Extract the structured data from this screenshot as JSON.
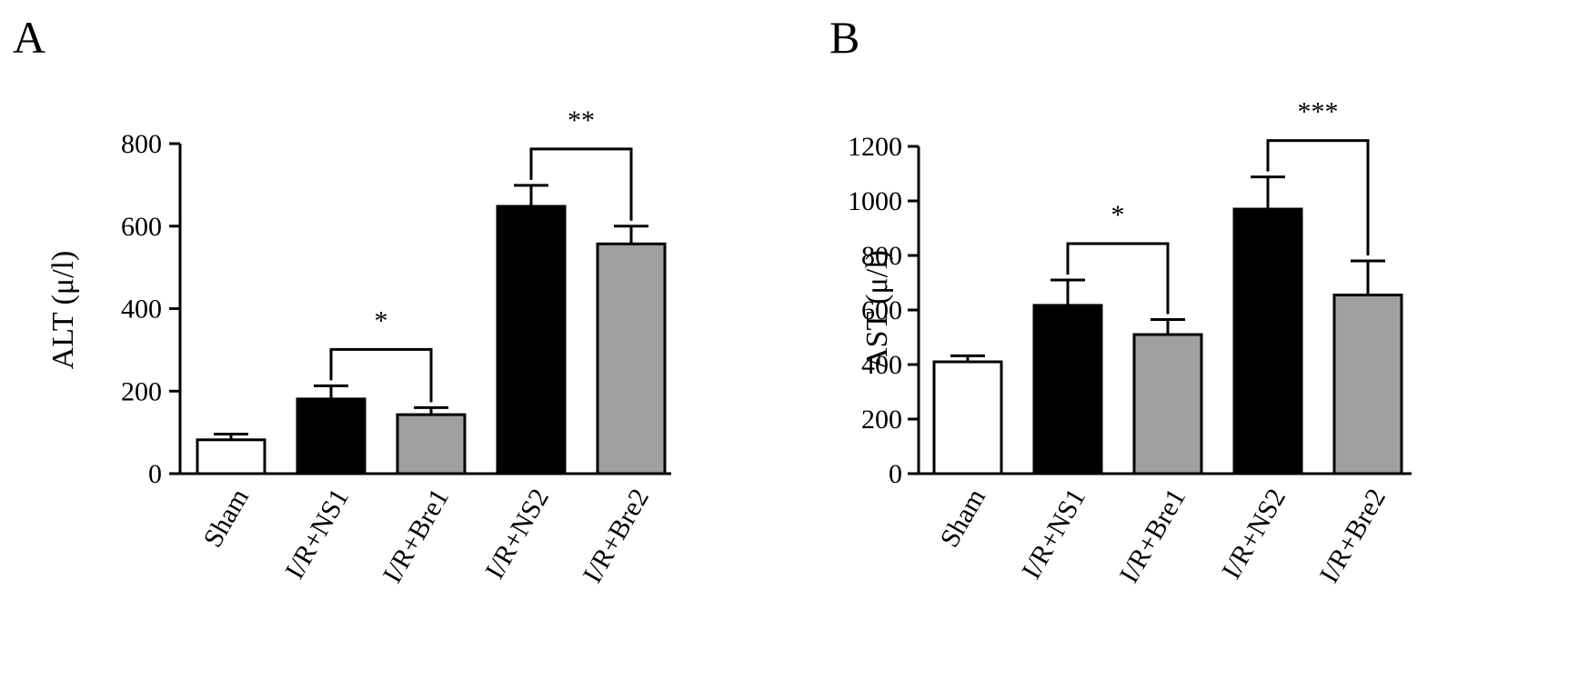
{
  "chart_data": [
    {
      "type": "bar",
      "panel_label": "A",
      "ylabel": "ALT (μ/l)",
      "ylim": [
        0,
        800
      ],
      "yticks": [
        0,
        200,
        400,
        600,
        800
      ],
      "categories": [
        "Sham",
        "I/R+NS1",
        "I/R+Bre1",
        "I/R+NS2",
        "I/R+Bre2"
      ],
      "values": [
        82,
        181,
        143,
        648,
        557
      ],
      "errors": [
        14,
        32,
        17,
        51,
        43
      ],
      "fills": [
        "#ffffff",
        "#000000",
        "#a0a0a0",
        "#000000",
        "#a0a0a0"
      ],
      "significance": [
        {
          "from": 1,
          "to": 2,
          "label": "*"
        },
        {
          "from": 3,
          "to": 4,
          "label": "**"
        }
      ]
    },
    {
      "type": "bar",
      "panel_label": "B",
      "ylabel": "AST (μ/l)",
      "ylim": [
        0,
        1200
      ],
      "yticks": [
        0,
        200,
        400,
        600,
        800,
        1000,
        1200
      ],
      "categories": [
        "Sham",
        "I/R+NS1",
        "I/R+Bre1",
        "I/R+NS2",
        "I/R+Bre2"
      ],
      "values": [
        410,
        617,
        510,
        970,
        655
      ],
      "errors": [
        22,
        93,
        55,
        118,
        125
      ],
      "fills": [
        "#ffffff",
        "#000000",
        "#a0a0a0",
        "#000000",
        "#a0a0a0"
      ],
      "significance": [
        {
          "from": 1,
          "to": 2,
          "label": "*"
        },
        {
          "from": 3,
          "to": 4,
          "label": "***"
        }
      ]
    }
  ]
}
